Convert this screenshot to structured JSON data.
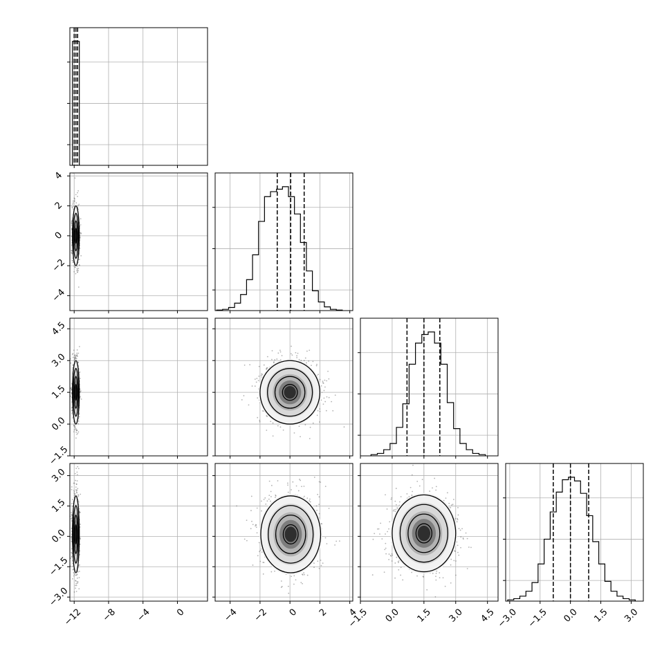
{
  "chart_data": {
    "type": "corner",
    "n_params": 4,
    "grid": true,
    "quantiles": [
      0.16,
      0.5,
      0.84
    ],
    "axes": {
      "p0": {
        "range": [
          -12.5,
          3.5
        ],
        "ticks": [
          -12,
          -8,
          -4,
          0
        ],
        "tick_labels": [
          "−12",
          "−8",
          "−4",
          "0"
        ]
      },
      "p1": {
        "range": [
          -5,
          4.2
        ],
        "ticks": [
          -4,
          -2,
          0,
          2,
          4
        ],
        "tick_labels": [
          "−4",
          "−2",
          "0",
          "2",
          "4"
        ]
      },
      "p2": {
        "range": [
          -1.5,
          5.0
        ],
        "ticks": [
          -1.5,
          0,
          1.5,
          3,
          4.5
        ],
        "tick_labels": [
          "−1.5",
          "0.0",
          "1.5",
          "3.0",
          "4.5"
        ]
      },
      "p3": {
        "range": [
          -3.2,
          3.6
        ],
        "ticks": [
          -3,
          -1.5,
          0,
          1.5,
          3
        ],
        "tick_labels": [
          "−3.0",
          "−1.5",
          "0.0",
          "1.5",
          "3.0"
        ]
      }
    },
    "marginals": [
      {
        "param": "p0",
        "bins": [
          {
            "x0": -12.2,
            "x1": -11.4,
            "count": 1.0
          }
        ],
        "quantile_values": [
          -12.0,
          -11.8,
          -11.6
        ]
      },
      {
        "param": "p1",
        "bin_edges": [
          -4.9,
          -4.5,
          -4.1,
          -3.7,
          -3.3,
          -2.9,
          -2.5,
          -2.1,
          -1.7,
          -1.3,
          -0.9,
          -0.5,
          -0.1,
          0.3,
          0.7,
          1.1,
          1.5,
          1.9,
          2.3,
          2.7,
          3.1,
          3.5
        ],
        "counts": [
          0.004,
          0.01,
          0.025,
          0.06,
          0.13,
          0.25,
          0.45,
          0.72,
          0.92,
          0.96,
          0.98,
          1.0,
          0.92,
          0.78,
          0.55,
          0.32,
          0.16,
          0.07,
          0.03,
          0.01,
          0.004
        ],
        "quantile_values": [
          -0.85,
          0.05,
          0.95
        ]
      },
      {
        "param": "p2",
        "bin_edges": [
          -1.0,
          -0.7,
          -0.4,
          -0.1,
          0.2,
          0.5,
          0.8,
          1.1,
          1.4,
          1.7,
          2.0,
          2.3,
          2.6,
          2.9,
          3.2,
          3.5,
          3.8,
          4.1,
          4.4
        ],
        "counts": [
          0.01,
          0.02,
          0.05,
          0.1,
          0.23,
          0.42,
          0.74,
          0.91,
          0.98,
          1.0,
          0.91,
          0.74,
          0.43,
          0.22,
          0.1,
          0.05,
          0.02,
          0.01
        ],
        "quantile_values": [
          0.7,
          1.5,
          2.25
        ]
      },
      {
        "param": "p3",
        "bin_edges": [
          -3.1,
          -2.8,
          -2.5,
          -2.2,
          -1.9,
          -1.6,
          -1.3,
          -1.0,
          -0.7,
          -0.4,
          -0.1,
          0.2,
          0.5,
          0.8,
          1.1,
          1.4,
          1.7,
          2.0,
          2.3,
          2.6,
          2.9,
          3.2
        ],
        "counts": [
          0.01,
          0.02,
          0.04,
          0.08,
          0.15,
          0.3,
          0.5,
          0.72,
          0.88,
          0.98,
          1.0,
          0.97,
          0.87,
          0.69,
          0.48,
          0.3,
          0.16,
          0.08,
          0.04,
          0.02,
          0.01
        ],
        "quantile_values": [
          -0.85,
          0.0,
          0.9
        ]
      }
    ],
    "joint": [
      {
        "x": "p0",
        "y": "p1",
        "center": [
          -11.8,
          0.0
        ],
        "spread": [
          0.2,
          1.0
        ]
      },
      {
        "x": "p0",
        "y": "p2",
        "center": [
          -11.8,
          1.5
        ],
        "spread": [
          0.2,
          0.75
        ]
      },
      {
        "x": "p1",
        "y": "p2",
        "center": [
          0.0,
          1.5
        ],
        "spread": [
          1.0,
          0.75
        ]
      },
      {
        "x": "p0",
        "y": "p3",
        "center": [
          -11.8,
          0.1
        ],
        "spread": [
          0.2,
          0.95
        ]
      },
      {
        "x": "p1",
        "y": "p3",
        "center": [
          0.05,
          0.1
        ],
        "spread": [
          1.0,
          0.95
        ]
      },
      {
        "x": "p2",
        "y": "p3",
        "center": [
          1.5,
          0.15
        ],
        "spread": [
          0.75,
          0.95
        ]
      }
    ],
    "contour_levels_sigma": [
      0.5,
      1.0,
      1.5,
      2.0
    ]
  }
}
